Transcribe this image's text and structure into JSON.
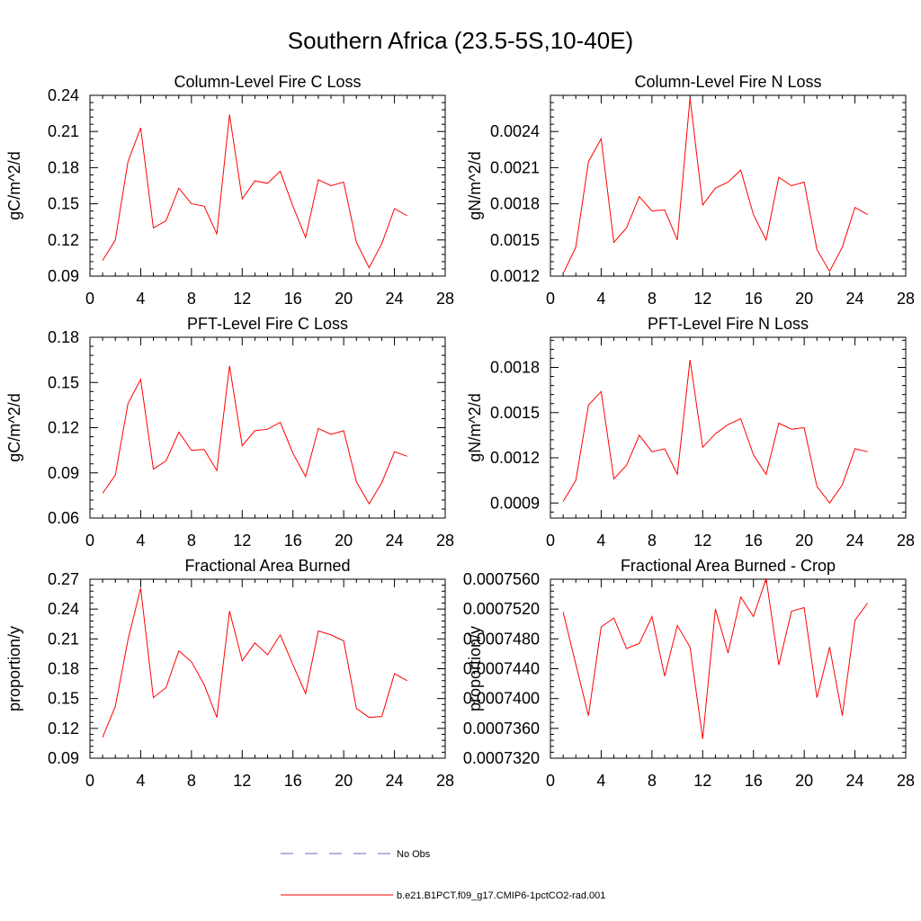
{
  "title": "Southern Africa (23.5-5S,10-40E)",
  "colors": {
    "model": "#ff0000",
    "obs": "#6a6ab8",
    "axis": "#000000"
  },
  "legend": {
    "obs_label": "No Obs",
    "model_label": "b.e21.B1PCT.f09_g17.CMIP6-1pctCO2-rad.001"
  },
  "chart_data": [
    {
      "type": "line",
      "title": "Column-Level Fire C Loss",
      "ylabel": "gC/m^2/d",
      "xlim": [
        0,
        28
      ],
      "ylim": [
        0.09,
        0.24
      ],
      "xticks": [
        "0",
        "4",
        "8",
        "12",
        "16",
        "20",
        "24",
        "28"
      ],
      "yticks": [
        "0.09",
        "0.12",
        "0.15",
        "0.18",
        "0.21",
        "0.24"
      ],
      "x": [
        1,
        2,
        3,
        4,
        5,
        6,
        7,
        8,
        9,
        10,
        11,
        12,
        13,
        14,
        15,
        16,
        17,
        18,
        19,
        20,
        21,
        22,
        23,
        24,
        25
      ],
      "series": [
        {
          "name": "b.e21.B1PCT.f09_g17.CMIP6-1pctCO2-rad.001",
          "values": [
            0.103,
            0.12,
            0.185,
            0.213,
            0.13,
            0.136,
            0.163,
            0.15,
            0.148,
            0.125,
            0.224,
            0.154,
            0.169,
            0.167,
            0.177,
            0.148,
            0.122,
            0.17,
            0.165,
            0.168,
            0.118,
            0.097,
            0.117,
            0.146,
            0.14
          ]
        }
      ]
    },
    {
      "type": "line",
      "title": "Column-Level Fire N Loss",
      "ylabel": "gN/m^2/d",
      "xlim": [
        0,
        28
      ],
      "ylim": [
        0.0012,
        0.0027
      ],
      "xticks": [
        "0",
        "4",
        "8",
        "12",
        "16",
        "20",
        "24",
        "28"
      ],
      "yticks": [
        "0.0012",
        "0.0015",
        "0.0018",
        "0.0021",
        "0.0024"
      ],
      "x": [
        1,
        2,
        3,
        4,
        5,
        6,
        7,
        8,
        9,
        10,
        11,
        12,
        13,
        14,
        15,
        16,
        17,
        18,
        19,
        20,
        21,
        22,
        23,
        24,
        25
      ],
      "series": [
        {
          "name": "b.e21.B1PCT.f09_g17.CMIP6-1pctCO2-rad.001",
          "values": [
            0.00122,
            0.00144,
            0.00215,
            0.00234,
            0.00148,
            0.0016,
            0.00186,
            0.00174,
            0.00175,
            0.0015,
            0.00268,
            0.00179,
            0.00193,
            0.00198,
            0.00208,
            0.00171,
            0.0015,
            0.00202,
            0.00195,
            0.00198,
            0.00142,
            0.00124,
            0.00144,
            0.00177,
            0.00171
          ]
        }
      ]
    },
    {
      "type": "line",
      "title": "PFT-Level Fire C Loss",
      "ylabel": "gC/m^2/d",
      "xlim": [
        0,
        28
      ],
      "ylim": [
        0.06,
        0.18
      ],
      "xticks": [
        "0",
        "4",
        "8",
        "12",
        "16",
        "20",
        "24",
        "28"
      ],
      "yticks": [
        "0.06",
        "0.09",
        "0.12",
        "0.15",
        "0.18"
      ],
      "x": [
        1,
        2,
        3,
        4,
        5,
        6,
        7,
        8,
        9,
        10,
        11,
        12,
        13,
        14,
        15,
        16,
        17,
        18,
        19,
        20,
        21,
        22,
        23,
        24,
        25
      ],
      "series": [
        {
          "name": "b.e21.B1PCT.f09_g17.CMIP6-1pctCO2-rad.001",
          "values": [
            0.0765,
            0.0885,
            0.136,
            0.152,
            0.0925,
            0.098,
            0.117,
            0.105,
            0.1055,
            0.0915,
            0.161,
            0.108,
            0.118,
            0.119,
            0.1235,
            0.103,
            0.0875,
            0.1195,
            0.1155,
            0.118,
            0.084,
            0.0695,
            0.0835,
            0.104,
            0.101
          ]
        }
      ]
    },
    {
      "type": "line",
      "title": "PFT-Level Fire N Loss",
      "ylabel": "gN/m^2/d",
      "xlim": [
        0,
        28
      ],
      "ylim": [
        0.0008,
        0.002
      ],
      "xticks": [
        "0",
        "4",
        "8",
        "12",
        "16",
        "20",
        "24",
        "28"
      ],
      "yticks": [
        "0.0009",
        "0.0012",
        "0.0015",
        "0.0018"
      ],
      "x": [
        1,
        2,
        3,
        4,
        5,
        6,
        7,
        8,
        9,
        10,
        11,
        12,
        13,
        14,
        15,
        16,
        17,
        18,
        19,
        20,
        21,
        22,
        23,
        24,
        25
      ],
      "series": [
        {
          "name": "b.e21.B1PCT.f09_g17.CMIP6-1pctCO2-rad.001",
          "values": [
            0.00091,
            0.00105,
            0.00155,
            0.00164,
            0.00106,
            0.00115,
            0.00135,
            0.00124,
            0.00126,
            0.00109,
            0.00185,
            0.00127,
            0.00136,
            0.00142,
            0.00146,
            0.00122,
            0.00109,
            0.00143,
            0.00139,
            0.0014,
            0.00101,
            0.0009,
            0.00102,
            0.00126,
            0.00124
          ]
        }
      ]
    },
    {
      "type": "line",
      "title": "Fractional Area Burned",
      "ylabel": "proportion/y",
      "xlim": [
        0,
        28
      ],
      "ylim": [
        0.09,
        0.27
      ],
      "xticks": [
        "0",
        "4",
        "8",
        "12",
        "16",
        "20",
        "24",
        "28"
      ],
      "yticks": [
        "0.09",
        "0.12",
        "0.15",
        "0.18",
        "0.21",
        "0.24",
        "0.27"
      ],
      "x": [
        1,
        2,
        3,
        4,
        5,
        6,
        7,
        8,
        9,
        10,
        11,
        12,
        13,
        14,
        15,
        16,
        17,
        18,
        19,
        20,
        21,
        22,
        23,
        24,
        25
      ],
      "series": [
        {
          "name": "b.e21.B1PCT.f09_g17.CMIP6-1pctCO2-rad.001",
          "values": [
            0.111,
            0.142,
            0.209,
            0.261,
            0.151,
            0.161,
            0.198,
            0.187,
            0.164,
            0.131,
            0.238,
            0.188,
            0.206,
            0.194,
            0.214,
            0.184,
            0.155,
            0.218,
            0.214,
            0.208,
            0.14,
            0.131,
            0.132,
            0.175,
            0.168
          ]
        }
      ]
    },
    {
      "type": "line",
      "title": "Fractional Area Burned - Crop",
      "ylabel": "proportion/y",
      "xlim": [
        0,
        28
      ],
      "ylim": [
        0.000732,
        0.000756
      ],
      "xticks": [
        "0",
        "4",
        "8",
        "12",
        "16",
        "20",
        "24",
        "28"
      ],
      "yticks": [
        "0.0007320",
        "0.0007360",
        "0.0007400",
        "0.0007440",
        "0.0007480",
        "0.0007520",
        "0.0007560"
      ],
      "x": [
        1,
        2,
        3,
        4,
        5,
        6,
        7,
        8,
        9,
        10,
        11,
        12,
        13,
        14,
        15,
        16,
        17,
        18,
        19,
        20,
        21,
        22,
        23,
        24,
        25
      ],
      "series": [
        {
          "name": "b.e21.B1PCT.f09_g17.CMIP6-1pctCO2-rad.001",
          "values": [
            0.0007516,
            0.0007446,
            0.0007377,
            0.0007496,
            0.0007508,
            0.0007467,
            0.0007474,
            0.000751,
            0.000743,
            0.0007498,
            0.0007469,
            0.0007346,
            0.000752,
            0.0007461,
            0.0007536,
            0.000751,
            0.0007561,
            0.0007445,
            0.0007517,
            0.0007522,
            0.0007401,
            0.0007469,
            0.0007377,
            0.0007505,
            0.0007528
          ]
        }
      ]
    }
  ]
}
